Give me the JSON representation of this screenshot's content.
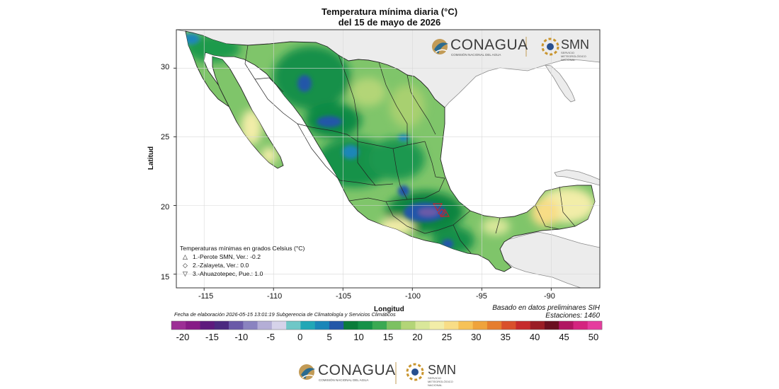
{
  "title": {
    "line1": "Temperatura mínima diaria (°C)",
    "line2": "del 15 de mayo de 2026"
  },
  "axes": {
    "xlabel": "Longitud",
    "ylabel": "Latitud",
    "x_ticks": [
      "-115",
      "-110",
      "-105",
      "-100",
      "-95",
      "-90"
    ],
    "y_ticks": [
      "30",
      "25",
      "20",
      "15"
    ],
    "x_range": [
      -117,
      -86.5
    ],
    "y_range": [
      14,
      32.8
    ]
  },
  "legend": {
    "heading": "Temperaturas mínimas en grados Celsius (°C)",
    "items": [
      {
        "symbol": "△",
        "label": "1.-Perote SMN, Ver.: -0.2"
      },
      {
        "symbol": "◇",
        "label": "2.-Zalayeta, Ver.: 0.0"
      },
      {
        "symbol": "▽",
        "label": "3.-Ahuazotepec, Pue.: 1.0"
      }
    ]
  },
  "footer": {
    "basado": "Basado en datos preliminares SIH",
    "estaciones": "Estaciones:  1460",
    "fecha": "Fecha de elaboración 2026-05-15 13:01:19 Subgerencia de Climatología y Servicios Climáticos"
  },
  "colorbar": {
    "labels": [
      "-20",
      "-15",
      "-10",
      "-5",
      "0",
      "5",
      "10",
      "15",
      "20",
      "25",
      "30",
      "35",
      "40",
      "45",
      "50"
    ],
    "colors": [
      "#9c2f95",
      "#861c86",
      "#5e1a7d",
      "#4b2a80",
      "#6a5aa8",
      "#8a83c0",
      "#b4aed6",
      "#d6d3ea",
      "#6fc7c7",
      "#21a7b6",
      "#1a86b8",
      "#2457a8",
      "#0a7c3a",
      "#159148",
      "#3aa953",
      "#7cc162",
      "#b3d577",
      "#d9e79a",
      "#f2eda8",
      "#f8dd86",
      "#f7c257",
      "#efa33c",
      "#e57d2e",
      "#d9502b",
      "#c62a2b",
      "#9a1d25",
      "#6a0f1f",
      "#b01561",
      "#d4247f",
      "#e53d9e"
    ],
    "min": -20,
    "max": 50
  },
  "logos": {
    "conagua": "CONAGUA",
    "conagua_sub": "COMISIÓN NACIONAL DEL AGUA",
    "smn": "SMN",
    "smn_sub": "SERVICIO METEOROLÓGICO NACIONAL"
  },
  "stations": [
    {
      "name": "Perote SMN, Ver.",
      "value": -0.2,
      "lon": -97.3,
      "lat": 19.6,
      "symbol": "triangle-up"
    },
    {
      "name": "Zalayeta, Ver.",
      "value": 0.0,
      "lon": -97.5,
      "lat": 19.4,
      "symbol": "diamond"
    },
    {
      "name": "Ahuazotepec, Pue.",
      "value": 1.0,
      "lon": -98.1,
      "lat": 20.0,
      "symbol": "triangle-down"
    }
  ]
}
